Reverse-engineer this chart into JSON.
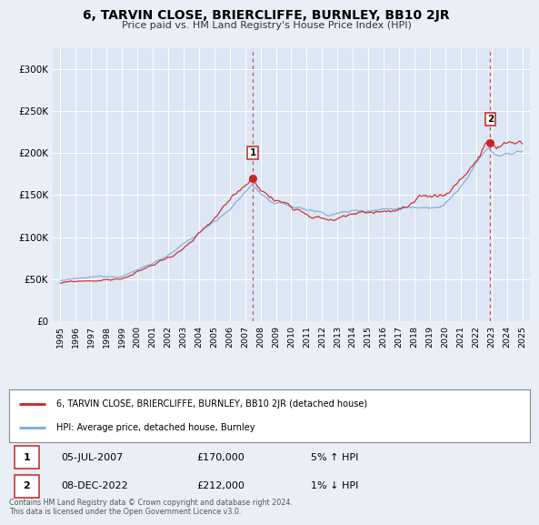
{
  "title": "6, TARVIN CLOSE, BRIERCLIFFE, BURNLEY, BB10 2JR",
  "subtitle": "Price paid vs. HM Land Registry's House Price Index (HPI)",
  "background_color": "#eaeff7",
  "plot_bg_color": "#dce6f4",
  "legend_line1": "6, TARVIN CLOSE, BRIERCLIFFE, BURNLEY, BB10 2JR (detached house)",
  "legend_line2": "HPI: Average price, detached house, Burnley",
  "sale1_date": "05-JUL-2007",
  "sale1_price": "£170,000",
  "sale1_hpi": "5% ↑ HPI",
  "sale2_date": "08-DEC-2022",
  "sale2_price": "£212,000",
  "sale2_hpi": "1% ↓ HPI",
  "footer": "Contains HM Land Registry data © Crown copyright and database right 2024.\nThis data is licensed under the Open Government Licence v3.0.",
  "sale1_x": 2007.5,
  "sale1_y": 170000,
  "sale2_x": 2022.92,
  "sale2_y": 212000,
  "hpi_color": "#7aaadd",
  "price_color": "#cc2222",
  "vline_color": "#cc3333",
  "marker_color": "#cc2222",
  "ylim": [
    0,
    325000
  ],
  "xlim": [
    1994.5,
    2025.5
  ],
  "yticks": [
    0,
    50000,
    100000,
    150000,
    200000,
    250000,
    300000
  ],
  "ytick_labels": [
    "£0",
    "£50K",
    "£100K",
    "£150K",
    "£200K",
    "£250K",
    "£300K"
  ],
  "xticks": [
    1995,
    1996,
    1997,
    1998,
    1999,
    2000,
    2001,
    2002,
    2003,
    2004,
    2005,
    2006,
    2007,
    2008,
    2009,
    2010,
    2011,
    2012,
    2013,
    2014,
    2015,
    2016,
    2017,
    2018,
    2019,
    2020,
    2021,
    2022,
    2023,
    2024,
    2025
  ]
}
